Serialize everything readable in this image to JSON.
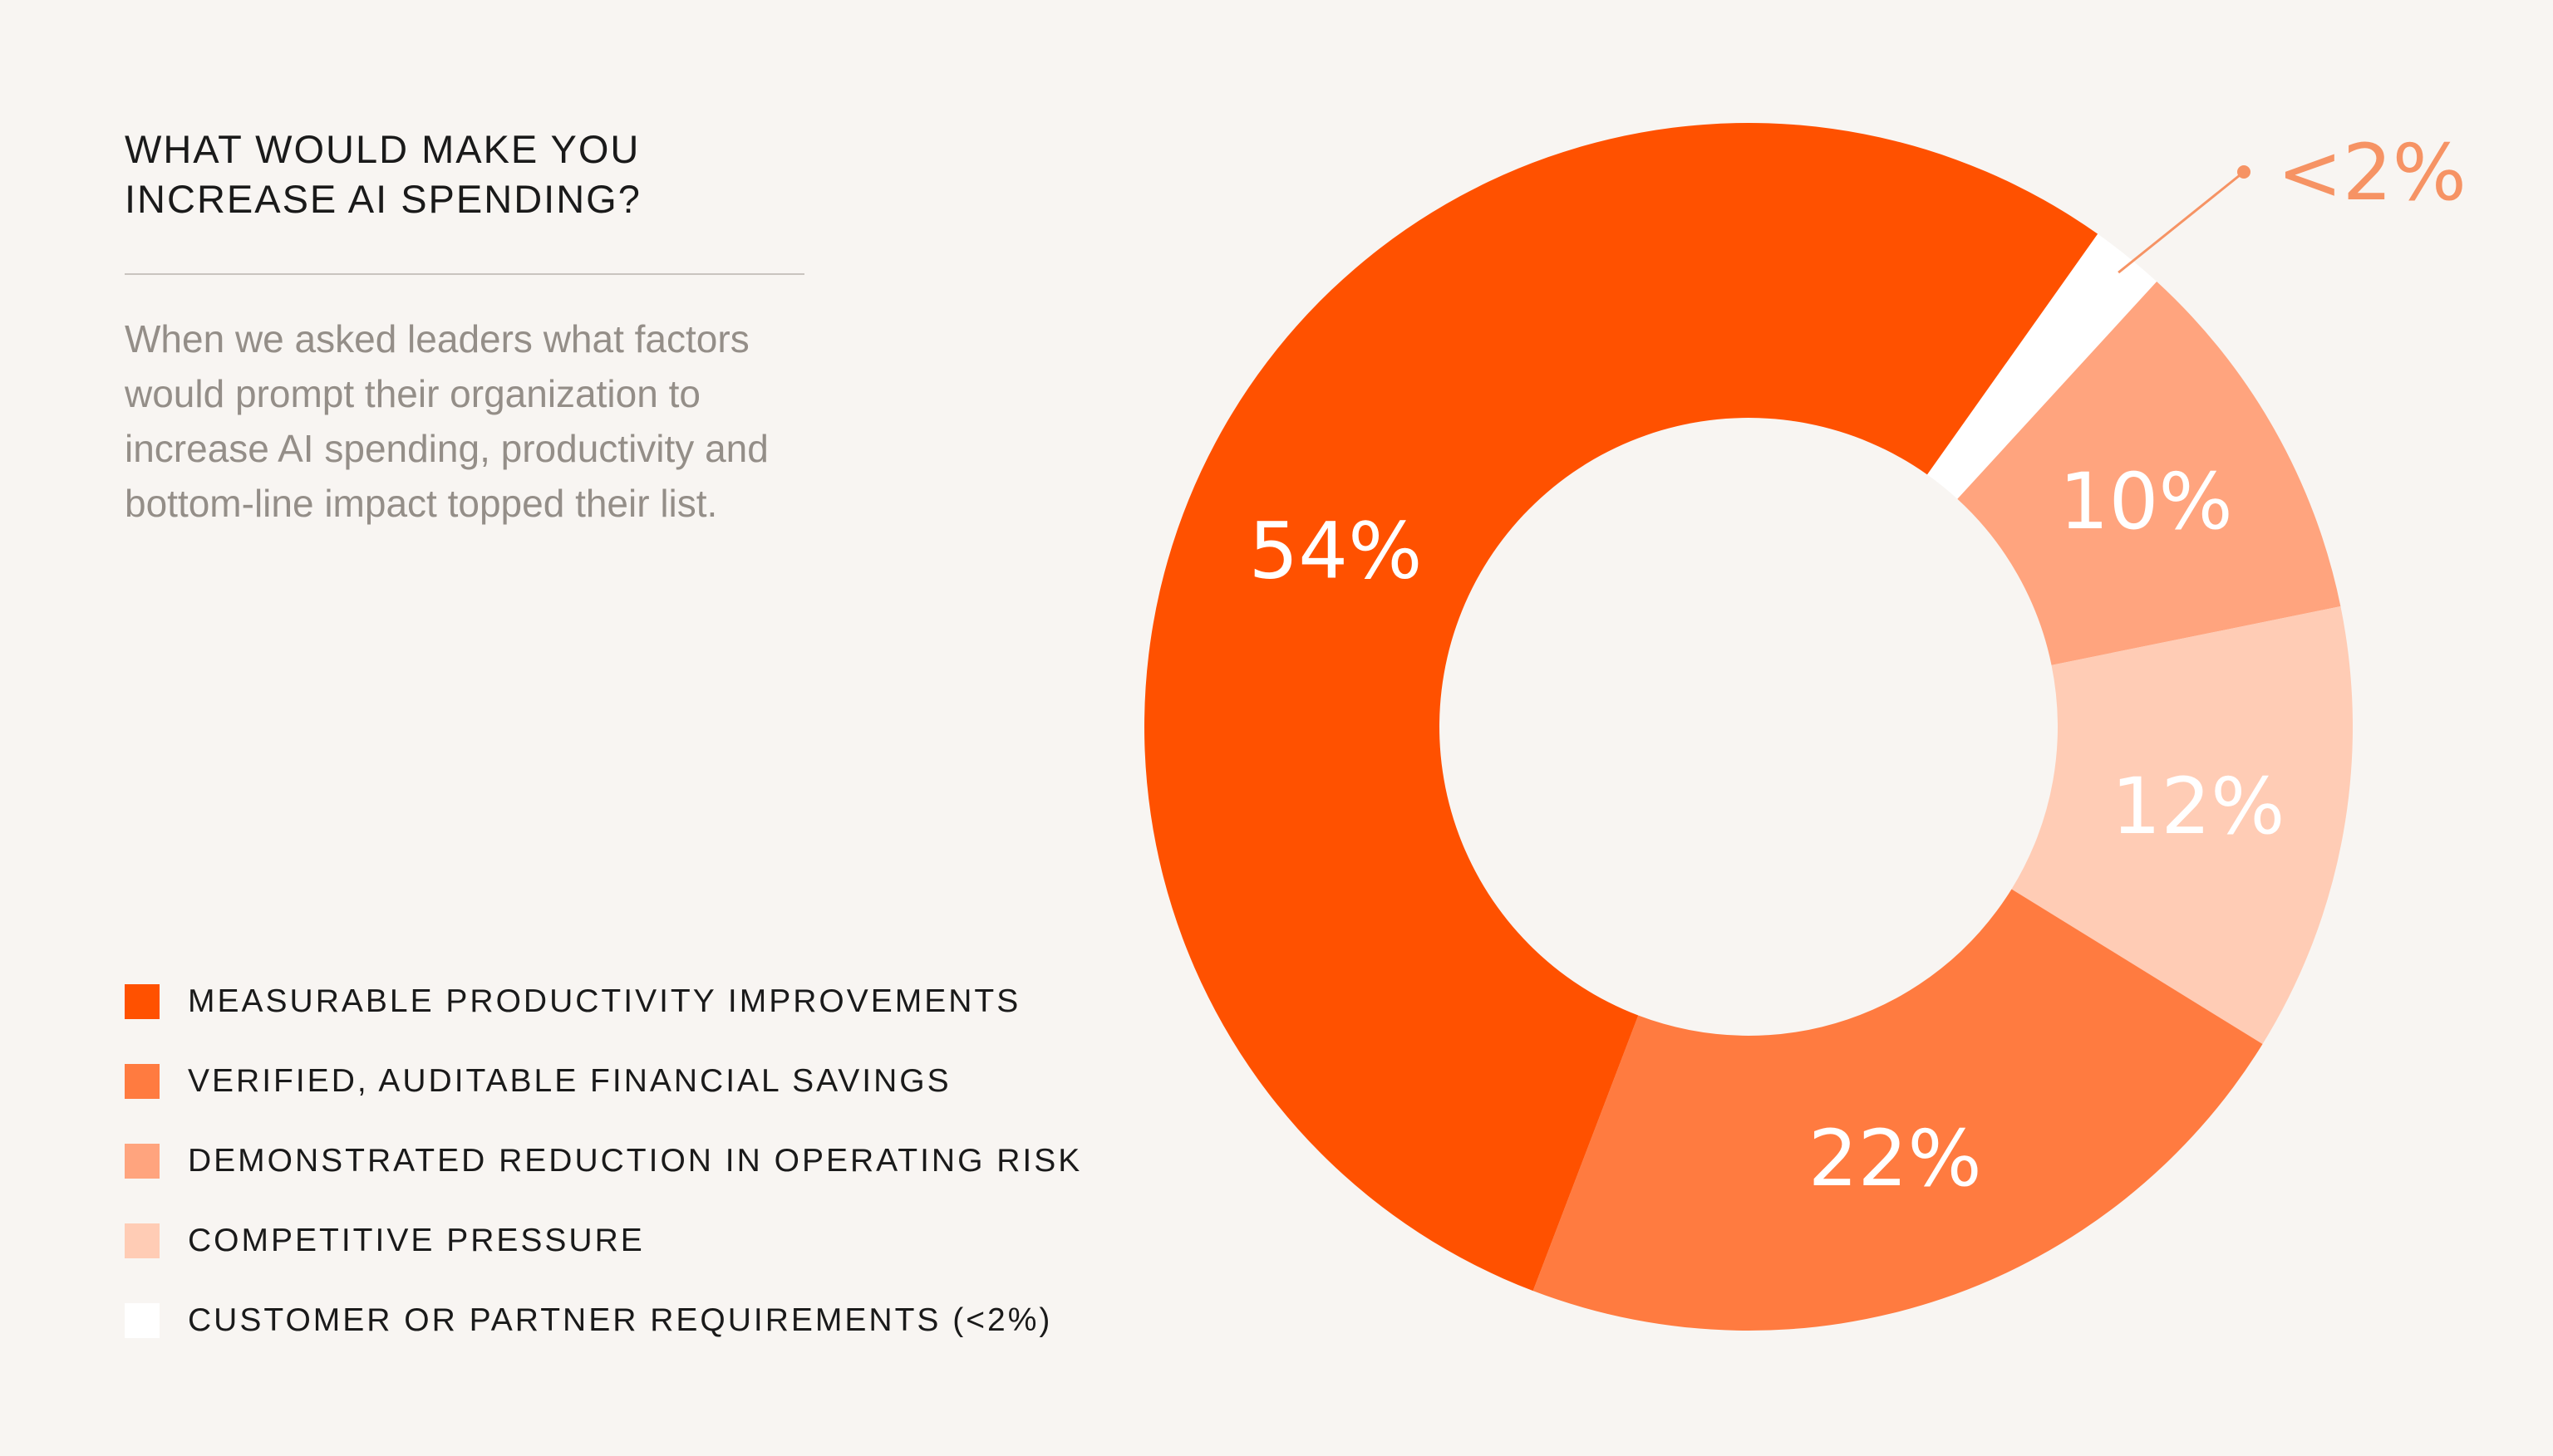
{
  "heading": "WHAT WOULD MAKE YOU INCREASE AI SPENDING?",
  "description": "When we asked leaders what factors would prompt their organization to increase AI spending, productivity and bottom-line impact topped their list.",
  "chart_data": {
    "type": "pie",
    "donut": true,
    "title": "",
    "legend_position": "bottom-left",
    "slices": [
      {
        "label": "MEASURABLE PRODUCTIVITY IMPROVEMENTS",
        "value": 54,
        "display": "54%",
        "color": "#ff5100"
      },
      {
        "label": "VERIFIED, AUDITABLE FINANCIAL SAVINGS",
        "value": 22,
        "display": "22%",
        "color": "#ff7b40"
      },
      {
        "label": "DEMONSTRATED REDUCTION IN OPERATING RISK",
        "value": 10,
        "display": "10%",
        "color": "#ffa47e"
      },
      {
        "label": "COMPETITIVE PRESSURE",
        "value": 12,
        "display": "12%",
        "color": "#ffccb5"
      },
      {
        "label": "CUSTOMER OR PARTNER REQUIREMENTS (<2%)",
        "value": 2,
        "display": "<2%",
        "color": "#ffffff"
      }
    ]
  }
}
